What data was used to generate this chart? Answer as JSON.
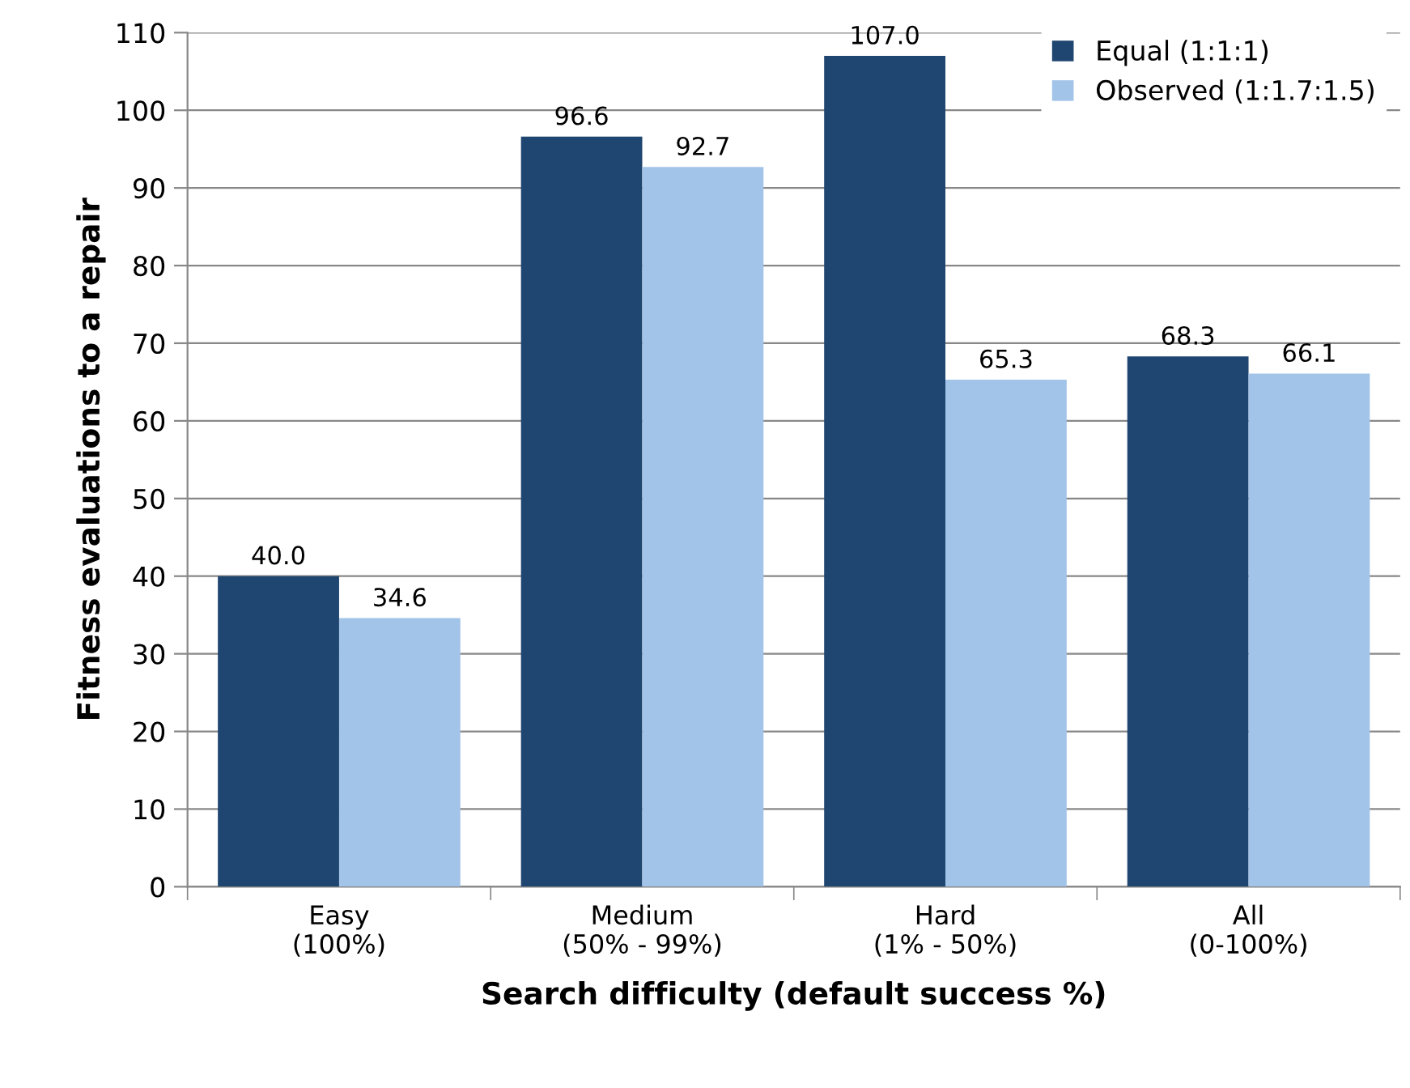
{
  "chart_data": {
    "type": "bar",
    "xlabel": "Search difficulty (default success %)",
    "ylabel": "Fitness evaluations to a repair",
    "categories": [
      "Easy\n(100%)",
      "Medium\n(50% - 99%)",
      "Hard\n(1% - 50%)",
      "All\n(0-100%)"
    ],
    "series": [
      {
        "name": "Equal (1:1:1)",
        "color": "#1f4670",
        "values": [
          40.0,
          96.6,
          107.0,
          68.3
        ],
        "value_labels": [
          "40.0",
          "96.6",
          "107.0",
          "68.3"
        ]
      },
      {
        "name": "Observed (1:1.7:1.5)",
        "color": "#a3c4e9",
        "values": [
          34.6,
          92.7,
          65.3,
          66.1
        ],
        "value_labels": [
          "34.6",
          "92.7",
          "65.3",
          "66.1"
        ]
      }
    ],
    "ylim": [
      0,
      110
    ],
    "yticks": [
      0,
      10,
      20,
      30,
      40,
      50,
      60,
      70,
      80,
      90,
      100,
      110
    ],
    "grid": "y",
    "legend": "top right"
  }
}
